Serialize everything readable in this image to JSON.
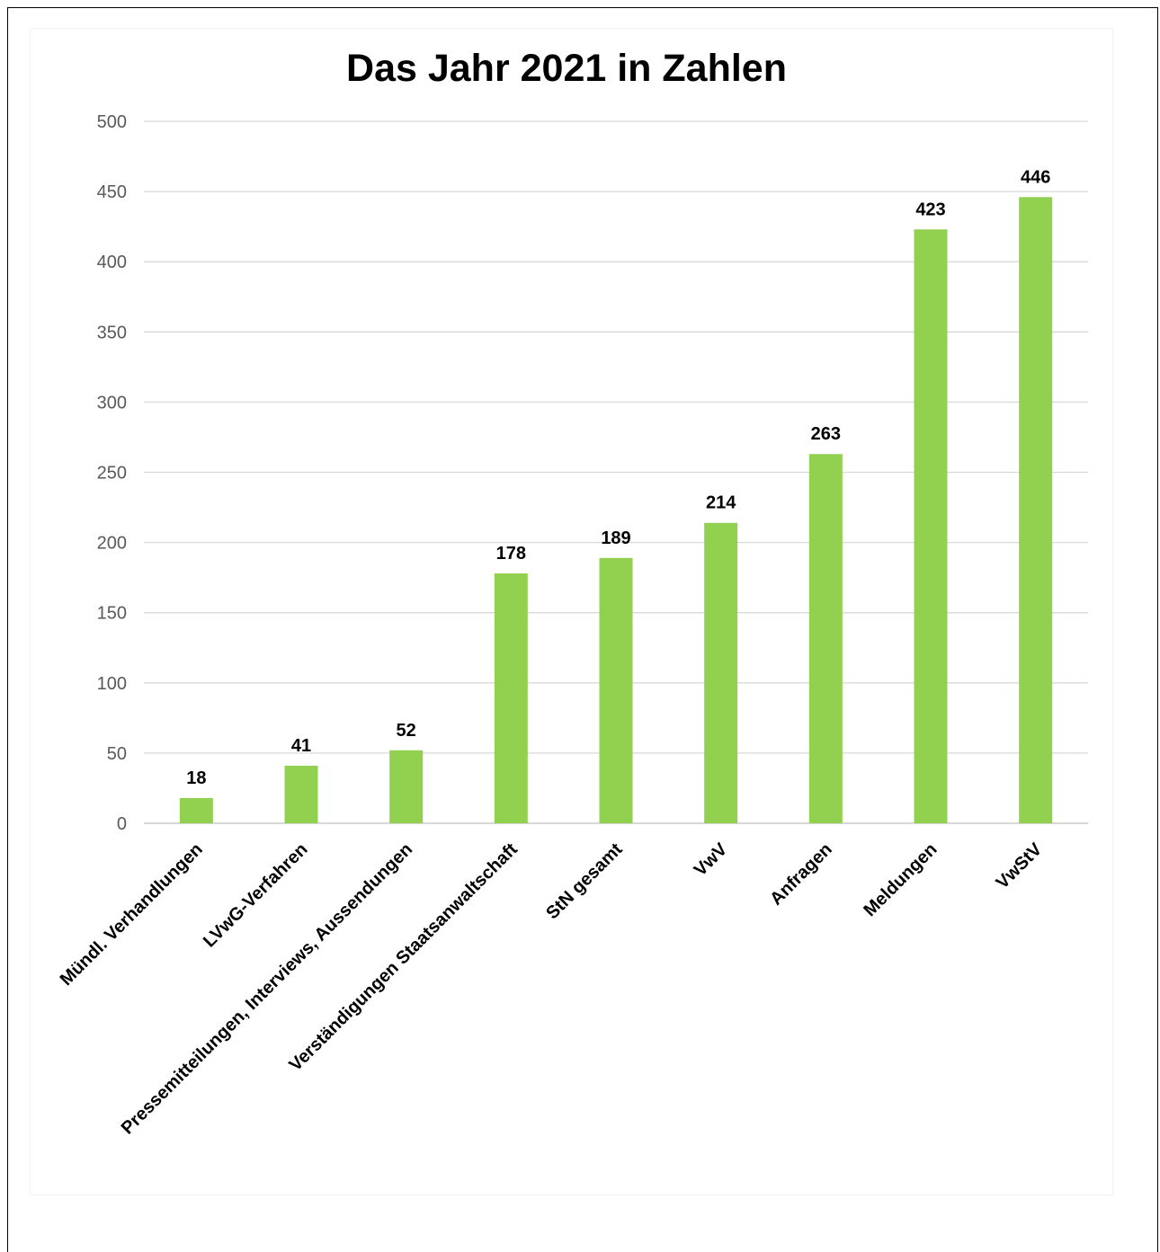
{
  "chart_data": {
    "type": "bar",
    "title": "Das Jahr 2021 in Zahlen",
    "categories": [
      "Mündl. Verhandlungen",
      "LVwG-Verfahren",
      "Pressemitteilungen, Interviews, Aussendungen",
      "Verständigungen Staatsanwaltschaft",
      "StN gesamt",
      "VwV",
      "Anfragen",
      "Meldungen",
      "VwStV"
    ],
    "values": [
      18,
      41,
      52,
      178,
      189,
      214,
      263,
      423,
      446
    ],
    "ylim": [
      0,
      500
    ],
    "yticks": [
      0,
      50,
      100,
      150,
      200,
      250,
      300,
      350,
      400,
      450,
      500
    ],
    "xlabel": "",
    "ylabel": "",
    "grid": true,
    "legend": "none",
    "bar_color": "#92d050",
    "data_labels": true
  }
}
